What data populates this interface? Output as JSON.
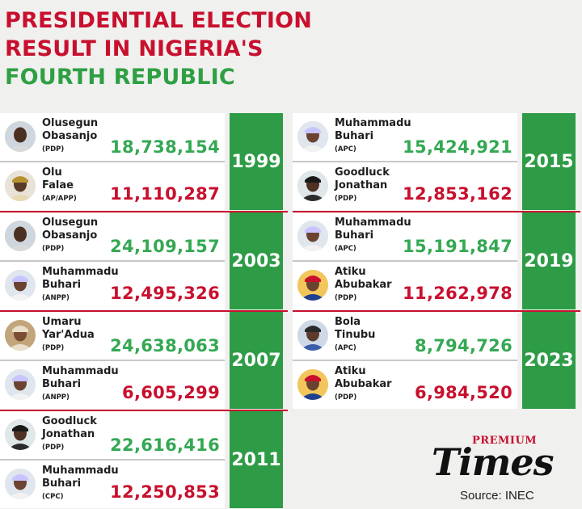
{
  "title": {
    "line1": "PRESIDENTIAL ELECTION",
    "line2": "RESULT IN NIGERIA'S",
    "line3": "FOURTH REPUBLIC"
  },
  "colors": {
    "winner": "#34a853",
    "runner_up": "#c8102e",
    "year_box": "#2e9c46",
    "title_red": "#c8102e",
    "title_green": "#2ea043"
  },
  "elections": [
    {
      "year": "1999",
      "winner": {
        "name_lines": [
          "Olusegun",
          "Obasanjo"
        ],
        "party": "(PDP)",
        "votes": "18,738,154"
      },
      "runner_up": {
        "name_lines": [
          "Olu",
          "Falae"
        ],
        "party": "(AP/APP)",
        "votes": "11,110,287"
      }
    },
    {
      "year": "2003",
      "winner": {
        "name_lines": [
          "Olusegun",
          "Obasanjo"
        ],
        "party": "(PDP)",
        "votes": "24,109,157"
      },
      "runner_up": {
        "name_lines": [
          "Muhammadu",
          "Buhari"
        ],
        "party": "(ANPP)",
        "votes": "12,495,326"
      }
    },
    {
      "year": "2007",
      "winner": {
        "name_lines": [
          "Umaru",
          "Yar'Adua"
        ],
        "party": "(PDP)",
        "votes": "24,638,063"
      },
      "runner_up": {
        "name_lines": [
          "Muhammadu",
          "Buhari"
        ],
        "party": "(ANPP)",
        "votes": "6,605,299"
      }
    },
    {
      "year": "2011",
      "winner": {
        "name_lines": [
          "Goodluck",
          "Jonathan"
        ],
        "party": "(PDP)",
        "votes": "22,616,416"
      },
      "runner_up": {
        "name_lines": [
          "Muhammadu",
          "Buhari"
        ],
        "party": "(CPC)",
        "votes": "12,250,853"
      }
    },
    {
      "year": "2015",
      "winner": {
        "name_lines": [
          "Muhammadu",
          "Buhari"
        ],
        "party": "(APC)",
        "votes": "15,424,921"
      },
      "runner_up": {
        "name_lines": [
          "Goodluck",
          "Jonathan"
        ],
        "party": "(PDP)",
        "votes": "12,853,162"
      }
    },
    {
      "year": "2019",
      "winner": {
        "name_lines": [
          "Muhammadu",
          "Buhari"
        ],
        "party": "(APC)",
        "votes": "15,191,847"
      },
      "runner_up": {
        "name_lines": [
          "Atiku",
          "Abubakar"
        ],
        "party": "(PDP)",
        "votes": "11,262,978"
      }
    },
    {
      "year": "2023",
      "winner": {
        "name_lines": [
          "Bola",
          "Tinubu"
        ],
        "party": "(APC)",
        "votes": "8,794,726"
      },
      "runner_up": {
        "name_lines": [
          "Atiku",
          "Abubakar"
        ],
        "party": "(PDP)",
        "votes": "6,984,520"
      }
    }
  ],
  "avatars": {
    "winner": [
      "obasanjo-photo",
      "obasanjo-photo",
      "yaradua-photo",
      "jonathan-photo",
      "buhari-photo",
      "buhari-photo",
      "tinubu-photo"
    ],
    "runner_up": [
      "falae-photo",
      "buhari-photo",
      "buhari-photo",
      "buhari-photo",
      "jonathan-photo",
      "atiku-photo",
      "atiku-photo"
    ]
  },
  "logo": {
    "premium": "PREMIUM",
    "times": "Times"
  },
  "source": "Source: INEC"
}
